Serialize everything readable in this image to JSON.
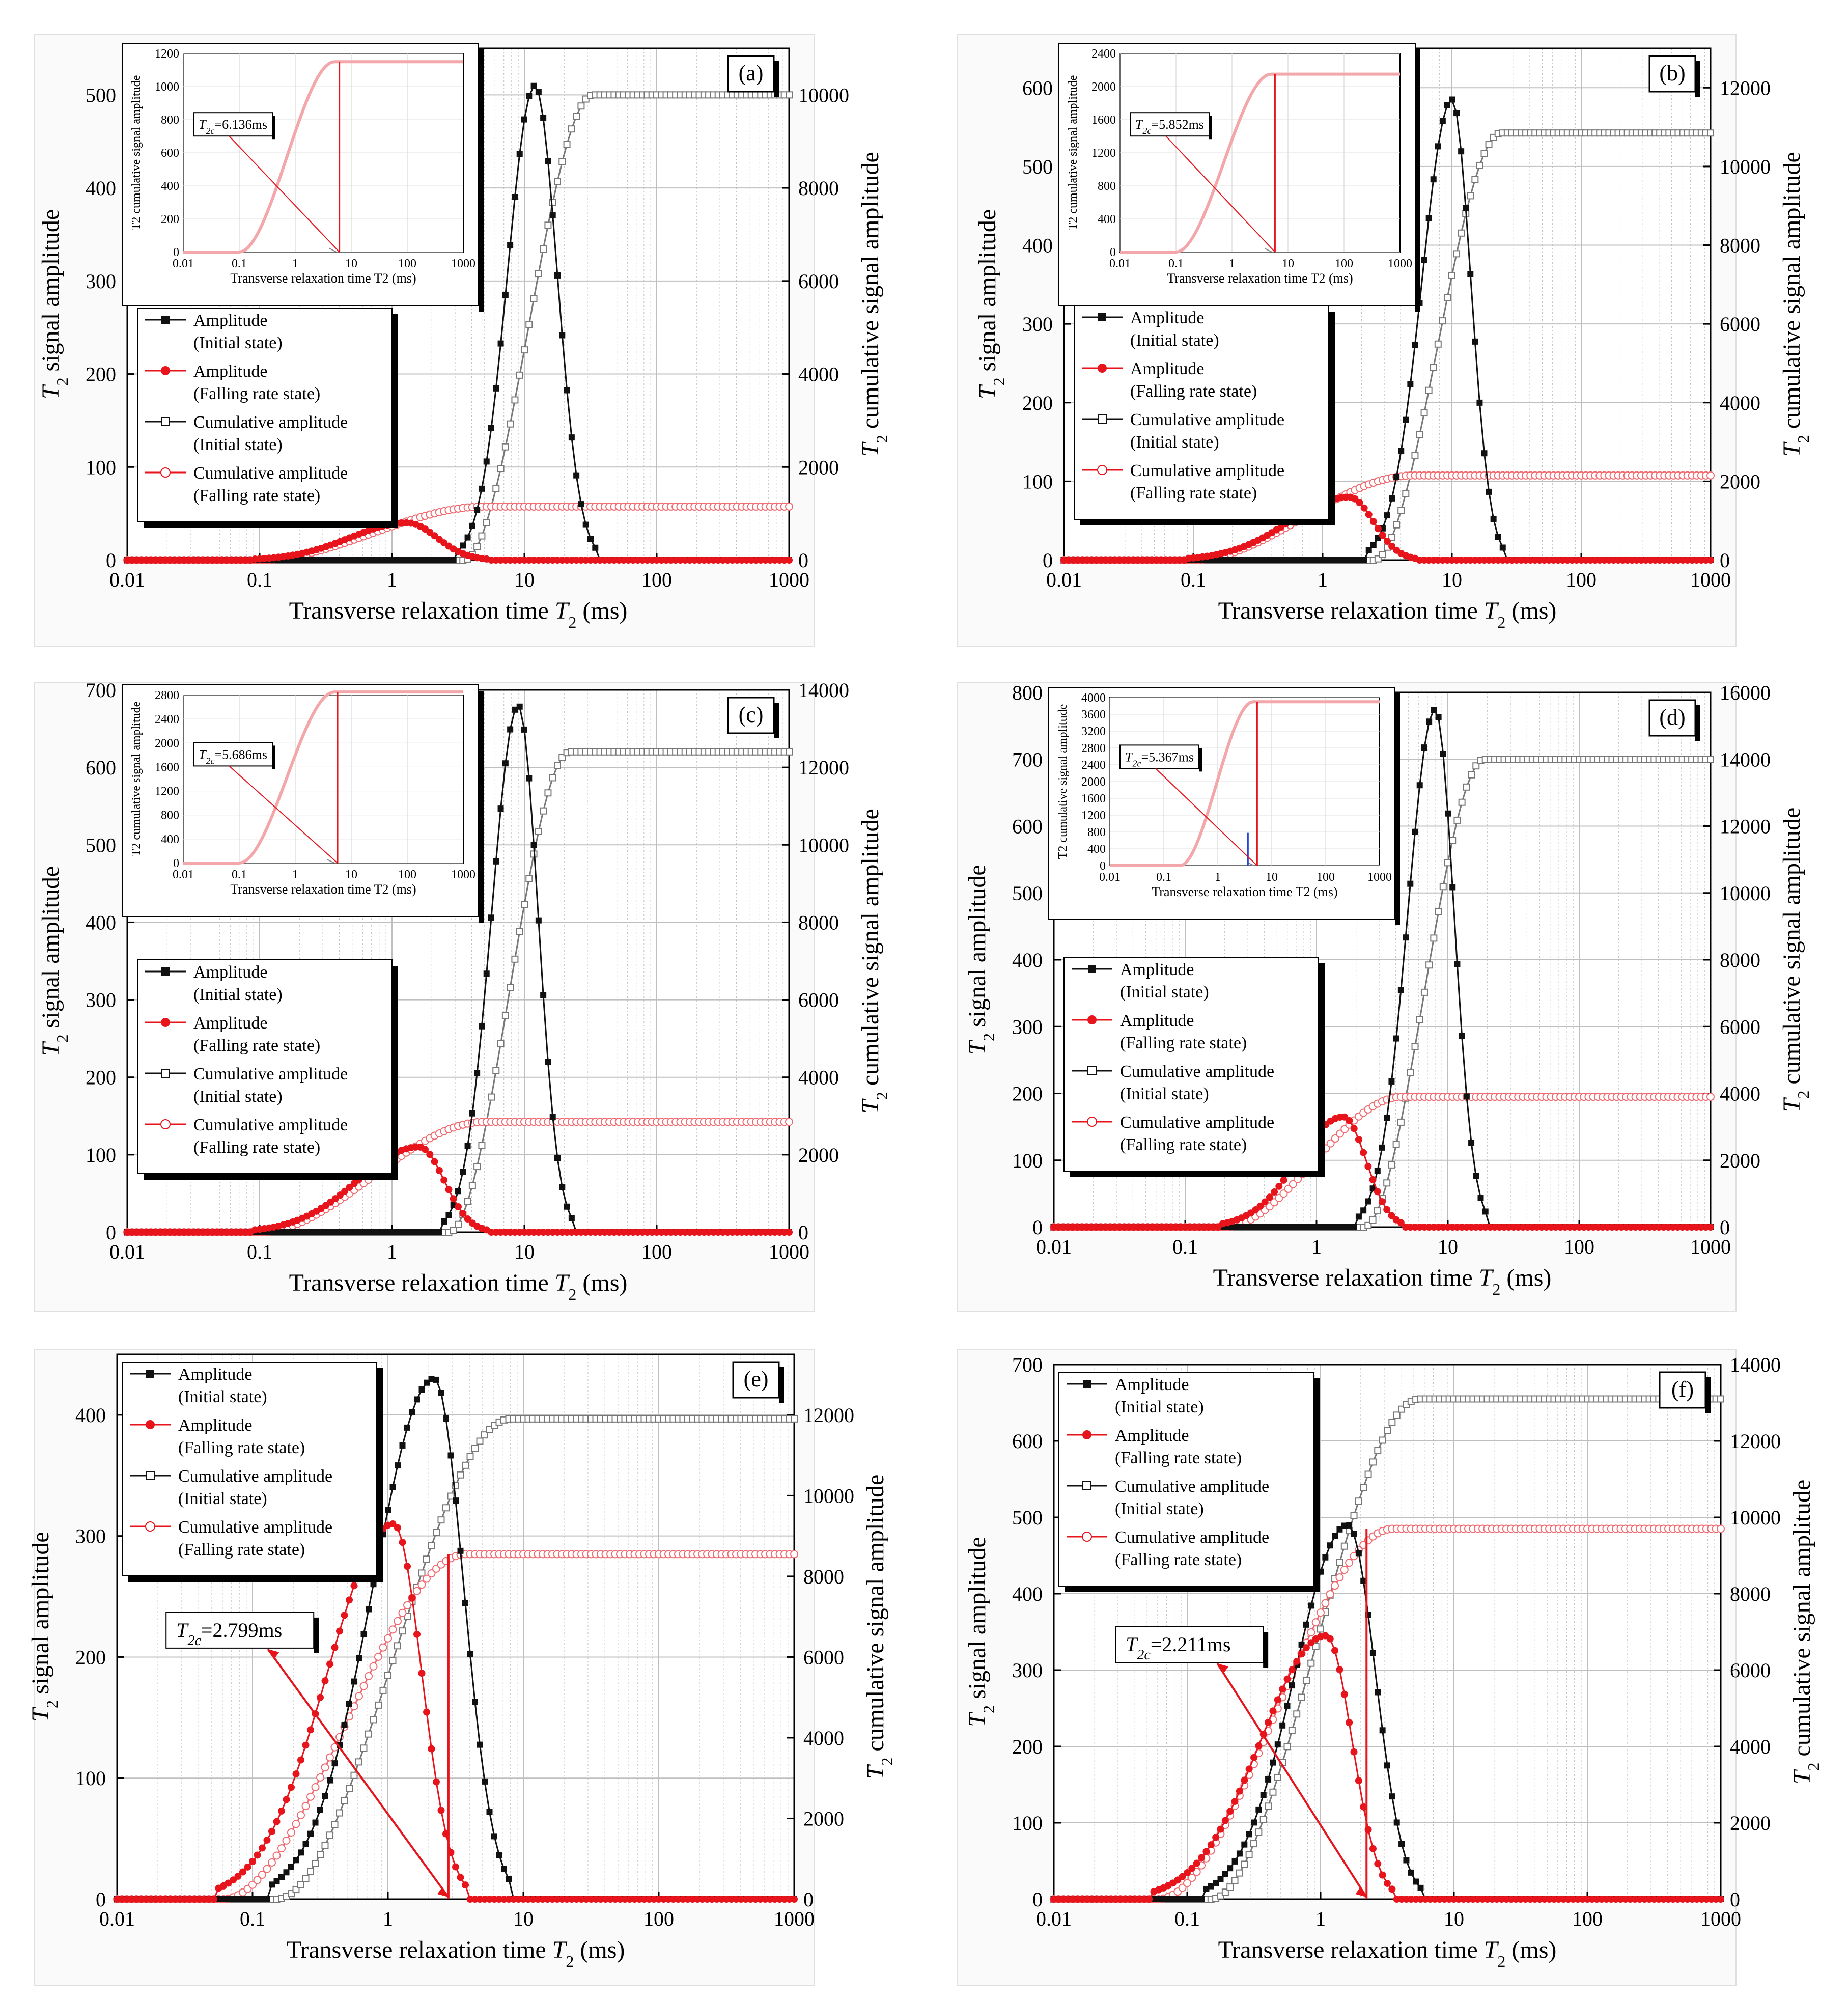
{
  "figure": {
    "colors": {
      "black": "#111111",
      "red": "#e8141c",
      "grid": "#bfbfbf",
      "inset_red": "#f4a7aa",
      "blue": "#2a44d8"
    },
    "shared": {
      "xlabel_main": "Transverse relaxation time ",
      "xlabel_sym": "T",
      "xlabel_sub": "2",
      "xlabel_unit": " (ms)",
      "ylabel_left_sym": "T",
      "ylabel_left_sub": "2",
      "ylabel_left_text": " signal amplitude",
      "ylabel_right_sym": "T",
      "ylabel_right_sub": "2",
      "ylabel_right_text": " cumulative signal amplitude",
      "inset_ylabel": "T2 cumulative signal amplitude",
      "inset_xlabel": "Transverse relaxation time T2 (ms)",
      "x_ticks": [
        "0.01",
        "0.1",
        "1",
        "10",
        "100",
        "1000"
      ],
      "legend": [
        {
          "label": "Amplitude",
          "sub": "(Initial state)",
          "color": "black",
          "marker": "square-filled"
        },
        {
          "label": "Amplitude",
          "sub": "(Falling rate state)",
          "color": "red",
          "marker": "circle-filled"
        },
        {
          "label": "Cumulative amplitude",
          "sub": "(Initial state)",
          "color": "black",
          "marker": "square-open"
        },
        {
          "label": "Cumulative amplitude",
          "sub": "(Falling rate state)",
          "color": "red",
          "marker": "circle-open"
        }
      ]
    }
  },
  "chart_data": [
    {
      "panel": "(a)",
      "type": "line",
      "xlim": [
        0.01,
        1000
      ],
      "ylim_left": [
        0,
        550
      ],
      "ylim_right": [
        0,
        11000
      ],
      "y_left_ticks": [
        0,
        100,
        200,
        300,
        400,
        500
      ],
      "y_right_ticks": [
        0,
        2000,
        4000,
        6000,
        8000,
        10000
      ],
      "series": [
        {
          "name": "Amplitude (Initial state)",
          "peak_x": 12,
          "peak_y": 510,
          "x_start": 3.5,
          "x_end": 33
        },
        {
          "name": "Amplitude (Falling rate state)",
          "peak_x": 1.3,
          "peak_y": 40,
          "x_start": 0.1,
          "x_end": 5
        },
        {
          "name": "Cumulative amplitude (Initial state)",
          "plateau": 10000,
          "x_start": 3.5,
          "x_end": 33
        },
        {
          "name": "Cumulative amplitude (Falling rate state)",
          "plateau": 1150,
          "x_start": 0.1,
          "x_end": 5
        }
      ],
      "inset": {
        "t2c_label": "T2c=6.136ms",
        "t2c_prefix": "T",
        "t2c_sub": "2c",
        "t2c_value": "=6.136ms",
        "t2c": 6.136,
        "ymax": 1200,
        "yticks": [
          "0",
          "200",
          "400",
          "600",
          "800",
          "1000",
          "1200"
        ],
        "plateau": 1150,
        "x_start": 0.1,
        "x_end": 5
      }
    },
    {
      "panel": "(b)",
      "type": "line",
      "xlim": [
        0.01,
        1000
      ],
      "ylim_left": [
        0,
        650
      ],
      "ylim_right": [
        0,
        13000
      ],
      "y_left_ticks": [
        0,
        100,
        200,
        300,
        400,
        500,
        600
      ],
      "y_right_ticks": [
        0,
        2000,
        4000,
        6000,
        8000,
        10000,
        12000
      ],
      "series": [
        {
          "name": "Amplitude (Initial state)",
          "peak_x": 10,
          "peak_y": 585,
          "x_start": 2.5,
          "x_end": 24
        },
        {
          "name": "Amplitude (Falling rate state)",
          "peak_x": 1.6,
          "peak_y": 80,
          "x_start": 0.1,
          "x_end": 5
        },
        {
          "name": "Cumulative amplitude (Initial state)",
          "plateau": 10850,
          "x_start": 2.5,
          "x_end": 24
        },
        {
          "name": "Cumulative amplitude (Falling rate state)",
          "plateau": 2150,
          "x_start": 0.1,
          "x_end": 5
        }
      ],
      "inset": {
        "t2c_label": "T2c=5.852ms",
        "t2c_prefix": "T",
        "t2c_sub": "2c",
        "t2c_value": "=5.852ms",
        "t2c": 5.852,
        "ymax": 2400,
        "yticks": [
          "0",
          "400",
          "800",
          "1200",
          "1600",
          "2000",
          "2400"
        ],
        "plateau": 2150,
        "x_start": 0.1,
        "x_end": 5
      }
    },
    {
      "panel": "(c)",
      "type": "line",
      "xlim": [
        0.01,
        1000
      ],
      "ylim_left": [
        0,
        700
      ],
      "ylim_right": [
        0,
        14000
      ],
      "y_left_ticks": [
        0,
        100,
        200,
        300,
        400,
        500,
        600,
        700
      ],
      "y_right_ticks": [
        0,
        2000,
        4000,
        6000,
        8000,
        10000,
        12000,
        14000
      ],
      "series": [
        {
          "name": "Amplitude (Initial state)",
          "peak_x": 9,
          "peak_y": 680,
          "x_start": 2.7,
          "x_end": 22
        },
        {
          "name": "Amplitude (Falling rate state)",
          "peak_x": 1.6,
          "peak_y": 110,
          "x_start": 0.1,
          "x_end": 5
        },
        {
          "name": "Cumulative amplitude (Initial state)",
          "plateau": 12400,
          "x_start": 2.7,
          "x_end": 22
        },
        {
          "name": "Cumulative amplitude (Falling rate state)",
          "plateau": 2850,
          "x_start": 0.1,
          "x_end": 5
        }
      ],
      "inset": {
        "t2c_label": "T2c=5.686ms",
        "t2c_prefix": "T",
        "t2c_sub": "2c",
        "t2c_value": "=5.686ms",
        "t2c": 5.686,
        "ymax": 2800,
        "yticks": [
          "0",
          "400",
          "800",
          "1200",
          "1600",
          "2000",
          "2400",
          "2800"
        ],
        "plateau": 2850,
        "x_start": 0.1,
        "x_end": 5
      }
    },
    {
      "panel": "(d)",
      "type": "line",
      "xlim": [
        0.01,
        1000
      ],
      "ylim_left": [
        0,
        800
      ],
      "ylim_right": [
        0,
        16000
      ],
      "y_left_ticks": [
        0,
        100,
        200,
        300,
        400,
        500,
        600,
        700,
        800
      ],
      "y_right_ticks": [
        0,
        2000,
        4000,
        6000,
        8000,
        10000,
        12000,
        14000,
        16000
      ],
      "series": [
        {
          "name": "Amplitude (Initial state)",
          "peak_x": 8,
          "peak_y": 775,
          "x_start": 2.3,
          "x_end": 19
        },
        {
          "name": "Amplitude (Falling rate state)",
          "peak_x": 1.6,
          "peak_y": 165,
          "x_start": 0.2,
          "x_end": 4.5
        },
        {
          "name": "Cumulative amplitude (Initial state)",
          "plateau": 14000,
          "x_start": 2.3,
          "x_end": 19
        },
        {
          "name": "Cumulative amplitude (Falling rate state)",
          "plateau": 3900,
          "x_start": 0.2,
          "x_end": 4.5
        }
      ],
      "inset": {
        "t2c_label": "T2c=5.367ms",
        "t2c_prefix": "T",
        "t2c_sub": "2c",
        "t2c_value": "=5.367ms",
        "t2c": 5.367,
        "ymax": 4000,
        "yticks": [
          "0",
          "400",
          "800",
          "1200",
          "1600",
          "2000",
          "2400",
          "2800",
          "3200",
          "3600",
          "4000"
        ],
        "plateau": 3900,
        "x_start": 0.2,
        "x_end": 4.5,
        "blue_line": true
      }
    },
    {
      "panel": "(e)",
      "type": "line",
      "xlim": [
        0.01,
        1000
      ],
      "ylim_left": [
        0,
        450
      ],
      "ylim_right": [
        0,
        13500
      ],
      "y_left_ticks": [
        0,
        100,
        200,
        300,
        400
      ],
      "y_right_ticks": [
        0,
        2000,
        4000,
        6000,
        8000,
        10000,
        12000
      ],
      "series": [
        {
          "name": "Amplitude (Initial state)",
          "peak_x": 2.2,
          "peak_y": 430,
          "x_start": 0.15,
          "x_end": 8
        },
        {
          "name": "Amplitude (Falling rate state)",
          "peak_x": 1.1,
          "peak_y": 310,
          "x_start": 0.06,
          "x_end": 3.8
        },
        {
          "name": "Cumulative amplitude (Initial state)",
          "plateau": 11900,
          "x_start": 0.15,
          "x_end": 8
        },
        {
          "name": "Cumulative amplitude (Falling rate state)",
          "plateau": 8550,
          "x_start": 0.06,
          "x_end": 3.8
        }
      ],
      "annotation": {
        "t2c_label": "T2c=2.799ms",
        "t2c_prefix": "T",
        "t2c_sub": "2c",
        "t2c_value": "=2.799ms",
        "t2c": 2.799
      }
    },
    {
      "panel": "(f)",
      "type": "line",
      "xlim": [
        0.01,
        1000
      ],
      "ylim_left": [
        0,
        700
      ],
      "ylim_right": [
        0,
        14000
      ],
      "y_left_ticks": [
        0,
        100,
        200,
        300,
        400,
        500,
        600,
        700
      ],
      "y_right_ticks": [
        0,
        2000,
        4000,
        6000,
        8000,
        10000,
        12000,
        14000
      ],
      "series": [
        {
          "name": "Amplitude (Initial state)",
          "peak_x": 1.6,
          "peak_y": 490,
          "x_start": 0.15,
          "x_end": 5.5
        },
        {
          "name": "Amplitude (Falling rate state)",
          "peak_x": 1.1,
          "peak_y": 345,
          "x_start": 0.06,
          "x_end": 3.5
        },
        {
          "name": "Cumulative amplitude (Initial state)",
          "plateau": 13100,
          "x_start": 0.15,
          "x_end": 5.5
        },
        {
          "name": "Cumulative amplitude (Falling rate state)",
          "plateau": 9700,
          "x_start": 0.06,
          "x_end": 3.5
        }
      ],
      "annotation": {
        "t2c_label": "T2c=2.211ms",
        "t2c_prefix": "T",
        "t2c_sub": "2c",
        "t2c_value": "=2.211ms",
        "t2c": 2.211
      }
    }
  ]
}
